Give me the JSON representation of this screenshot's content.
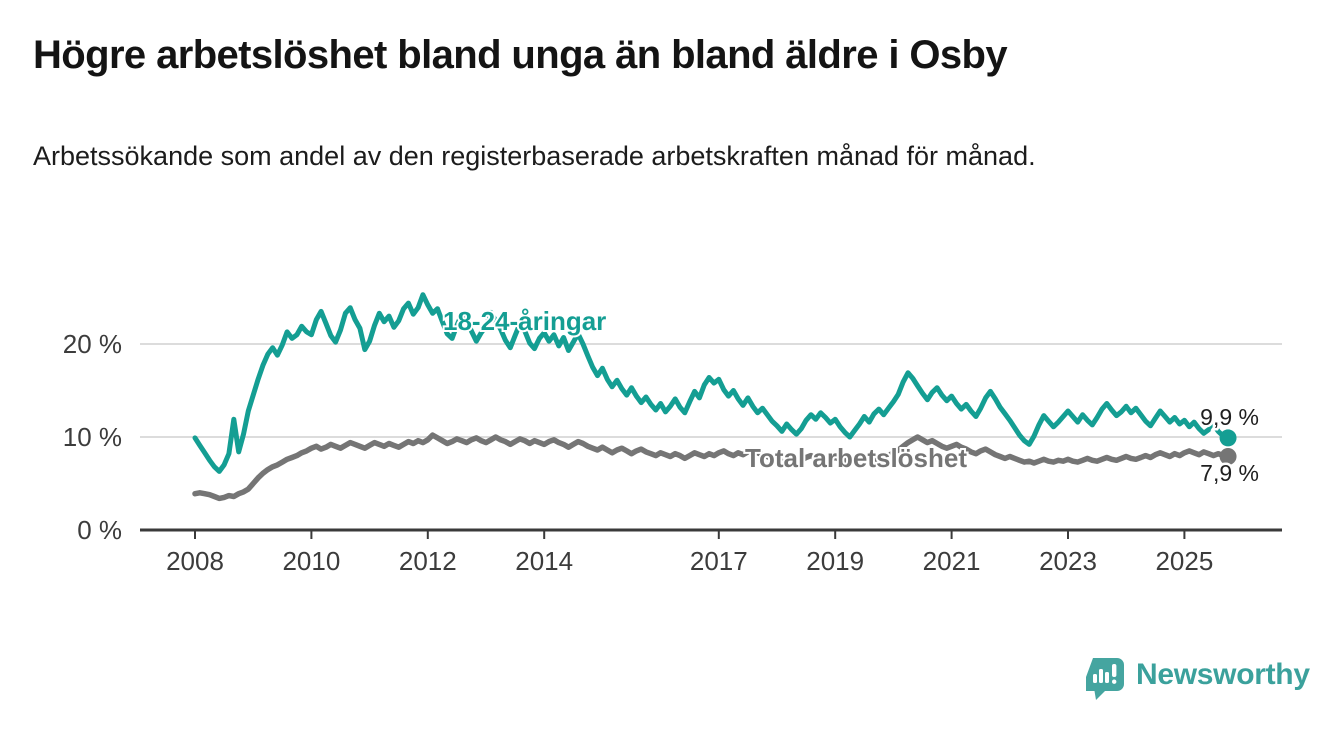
{
  "header": {
    "title": "Högre arbetslöshet bland unga än bland äldre i Osby",
    "subtitle": "Arbetssökande som andel av den registerbaserade arbetskraften månad för månad."
  },
  "footer": {
    "brand": "Newsworthy",
    "brand_color": "#3ba19c",
    "logo_icon": "bar-chart-speech-bubble-icon"
  },
  "colors": {
    "youth_line": "#149e93",
    "total_line": "#757575",
    "grid": "#dcdcdc",
    "axis": "#3a3a3a",
    "tick_text": "#3c3c3c",
    "end_label_text": "#1f1f1f"
  },
  "chart_data": {
    "type": "line",
    "unit": "%",
    "x_start": "2008-01",
    "x_end": "2025-10",
    "x_frequency": "monthly",
    "x_ticks": [
      2008,
      2010,
      2012,
      2014,
      2017,
      2019,
      2021,
      2023,
      2025
    ],
    "y_ticks": [
      {
        "value": 0,
        "label": "0 %"
      },
      {
        "value": 10,
        "label": "10 %"
      },
      {
        "value": 20,
        "label": "20 %"
      }
    ],
    "ylim": [
      0,
      27
    ],
    "grid": "horizontal",
    "legend_position": "inline",
    "series": [
      {
        "id": "total",
        "name": "Total arbetslöshet",
        "color": "#757575",
        "stroke_width": 5.5,
        "end_value": 7.9,
        "end_label": "7,9 %",
        "values": [
          3.9,
          4.0,
          3.9,
          3.8,
          3.6,
          3.4,
          3.5,
          3.7,
          3.6,
          3.9,
          4.1,
          4.4,
          5.0,
          5.6,
          6.1,
          6.5,
          6.8,
          7.0,
          7.3,
          7.6,
          7.8,
          8.0,
          8.3,
          8.5,
          8.8,
          9.0,
          8.7,
          8.9,
          9.2,
          9.0,
          8.8,
          9.1,
          9.4,
          9.2,
          9.0,
          8.8,
          9.1,
          9.4,
          9.2,
          9.0,
          9.3,
          9.1,
          8.9,
          9.2,
          9.5,
          9.3,
          9.6,
          9.4,
          9.7,
          10.2,
          9.9,
          9.6,
          9.3,
          9.5,
          9.8,
          9.6,
          9.4,
          9.7,
          9.9,
          9.6,
          9.4,
          9.7,
          10.0,
          9.7,
          9.5,
          9.2,
          9.5,
          9.8,
          9.6,
          9.3,
          9.6,
          9.4,
          9.2,
          9.5,
          9.7,
          9.4,
          9.2,
          8.9,
          9.2,
          9.5,
          9.3,
          9.0,
          8.8,
          8.6,
          8.9,
          8.6,
          8.3,
          8.6,
          8.8,
          8.5,
          8.2,
          8.5,
          8.7,
          8.4,
          8.2,
          8.0,
          8.3,
          8.1,
          7.9,
          8.2,
          8.0,
          7.7,
          8.0,
          8.3,
          8.1,
          7.9,
          8.2,
          8.0,
          8.3,
          8.5,
          8.2,
          8.0,
          8.3,
          8.1,
          8.4,
          8.6,
          8.3,
          8.1,
          7.9,
          7.7,
          8.0,
          7.8,
          7.6,
          7.9,
          7.7,
          7.5,
          7.8,
          8.0,
          7.7,
          7.5,
          7.3,
          7.6,
          7.8,
          7.6,
          7.4,
          7.7,
          7.5,
          7.3,
          7.6,
          7.9,
          7.7,
          7.5,
          7.8,
          8.0,
          8.3,
          8.6,
          9.0,
          9.4,
          9.7,
          10.0,
          9.7,
          9.4,
          9.6,
          9.3,
          9.0,
          8.8,
          9.0,
          9.2,
          8.9,
          8.7,
          8.4,
          8.2,
          8.5,
          8.7,
          8.4,
          8.1,
          7.9,
          7.7,
          7.9,
          7.7,
          7.5,
          7.3,
          7.4,
          7.2,
          7.4,
          7.6,
          7.4,
          7.3,
          7.5,
          7.4,
          7.6,
          7.4,
          7.3,
          7.5,
          7.7,
          7.5,
          7.4,
          7.6,
          7.8,
          7.6,
          7.5,
          7.7,
          7.9,
          7.7,
          7.6,
          7.8,
          8.0,
          7.8,
          8.1,
          8.3,
          8.1,
          7.9,
          8.2,
          8.0,
          8.3,
          8.5,
          8.3,
          8.1,
          8.4,
          8.2,
          8.0,
          8.2,
          8.0,
          7.9
        ]
      },
      {
        "id": "youth-18-24",
        "name": "18-24-åringar",
        "color": "#149e93",
        "stroke_width": 5,
        "end_value": 9.9,
        "end_label": "9,9 %",
        "values": [
          9.9,
          9.1,
          8.3,
          7.5,
          6.8,
          6.3,
          7.0,
          8.2,
          11.9,
          8.4,
          10.3,
          12.8,
          14.5,
          16.2,
          17.7,
          18.9,
          19.6,
          18.8,
          19.9,
          21.3,
          20.6,
          21.0,
          21.9,
          21.3,
          21.0,
          22.6,
          23.5,
          22.2,
          20.9,
          20.2,
          21.5,
          23.3,
          23.9,
          22.6,
          21.7,
          19.4,
          20.3,
          22.0,
          23.3,
          22.4,
          23.0,
          21.8,
          22.5,
          23.8,
          24.4,
          23.2,
          23.9,
          25.3,
          24.2,
          23.3,
          23.8,
          22.4,
          21.1,
          20.6,
          22.0,
          23.2,
          22.6,
          21.4,
          20.3,
          21.2,
          21.9,
          23.4,
          22.5,
          21.6,
          20.4,
          19.6,
          20.9,
          22.2,
          21.4,
          20.1,
          19.5,
          20.6,
          21.2,
          20.3,
          21.0,
          19.8,
          20.7,
          19.3,
          20.2,
          21.1,
          20.0,
          18.7,
          17.5,
          16.6,
          17.4,
          16.2,
          15.4,
          16.1,
          15.2,
          14.5,
          15.3,
          14.4,
          13.7,
          14.3,
          13.5,
          12.9,
          13.6,
          12.7,
          13.3,
          14.1,
          13.2,
          12.6,
          13.8,
          14.9,
          14.2,
          15.6,
          16.4,
          15.8,
          16.2,
          15.1,
          14.4,
          15.0,
          14.1,
          13.4,
          14.2,
          13.3,
          12.6,
          13.1,
          12.4,
          11.7,
          11.2,
          10.6,
          11.4,
          10.8,
          10.3,
          10.9,
          11.8,
          12.4,
          11.9,
          12.6,
          12.1,
          11.5,
          11.9,
          11.1,
          10.5,
          10.0,
          10.7,
          11.4,
          12.2,
          11.6,
          12.5,
          13.0,
          12.4,
          13.1,
          13.8,
          14.6,
          15.9,
          16.9,
          16.3,
          15.5,
          14.7,
          14.0,
          14.8,
          15.3,
          14.5,
          13.9,
          14.4,
          13.6,
          13.0,
          13.5,
          12.8,
          12.2,
          13.1,
          14.2,
          14.9,
          14.1,
          13.2,
          12.5,
          11.8,
          11.0,
          10.2,
          9.6,
          9.2,
          10.1,
          11.3,
          12.3,
          11.7,
          11.1,
          11.6,
          12.2,
          12.8,
          12.2,
          11.6,
          12.4,
          11.8,
          11.3,
          12.1,
          13.0,
          13.6,
          12.9,
          12.3,
          12.7,
          13.3,
          12.6,
          13.1,
          12.4,
          11.7,
          11.2,
          12.0,
          12.8,
          12.2,
          11.6,
          12.1,
          11.4,
          11.8,
          11.1,
          11.6,
          10.9,
          10.4,
          10.8,
          11.3,
          10.6,
          10.1,
          9.9
        ]
      }
    ]
  }
}
